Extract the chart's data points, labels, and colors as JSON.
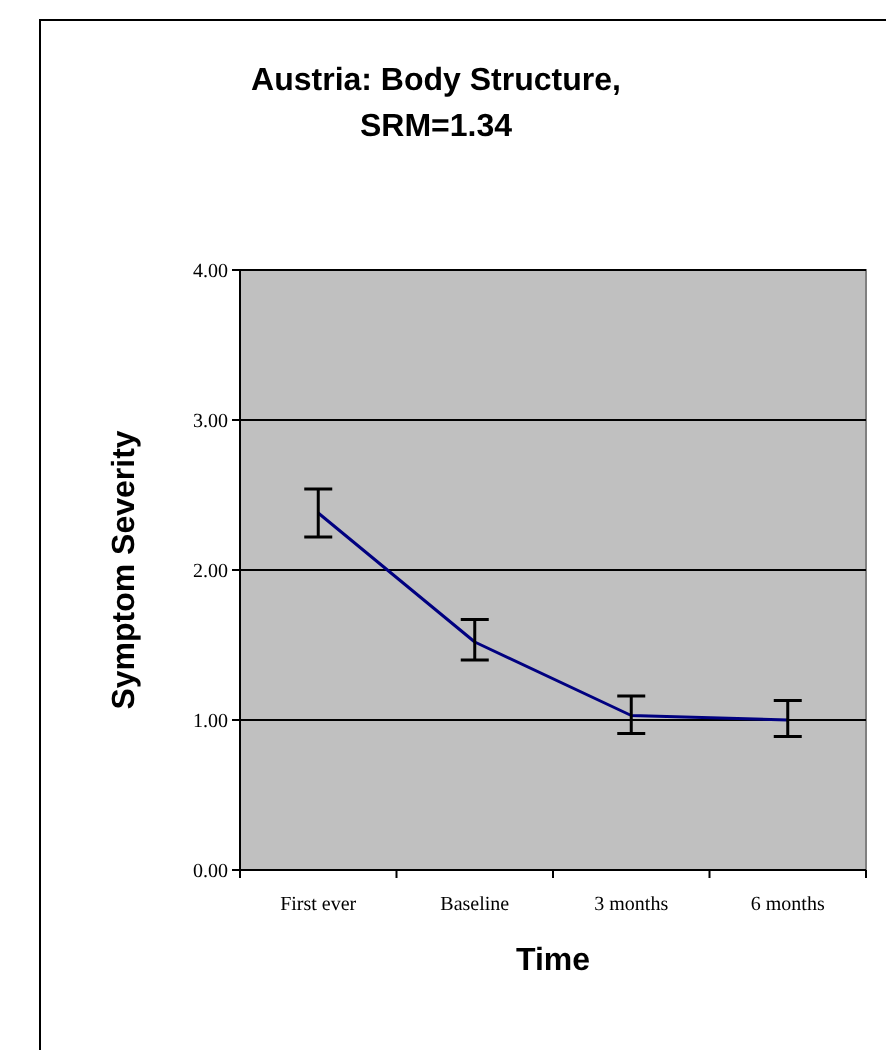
{
  "chart_data": {
    "type": "line",
    "title": "Austria: Body Structure,\nSRM=1.34",
    "xlabel": "Time",
    "ylabel": "Symptom Severity",
    "categories": [
      "First ever",
      "Baseline",
      "3 months",
      "6 months"
    ],
    "series": [
      {
        "color": "#000080",
        "values": [
          2.38,
          1.52,
          1.03,
          1.0
        ],
        "errors": [
          [
            2.22,
            2.54
          ],
          [
            1.4,
            1.67
          ],
          [
            0.91,
            1.16
          ],
          [
            0.89,
            1.13
          ]
        ]
      }
    ],
    "ylim": [
      0,
      4
    ],
    "yticks": [
      {
        "value": 0,
        "label": "0.00"
      },
      {
        "value": 1,
        "label": "1.00"
      },
      {
        "value": 2,
        "label": "2.00"
      },
      {
        "value": 3,
        "label": "3.00"
      },
      {
        "value": 4,
        "label": "4.00"
      }
    ],
    "grid": "y",
    "marker": "none",
    "line_style": "solid"
  }
}
